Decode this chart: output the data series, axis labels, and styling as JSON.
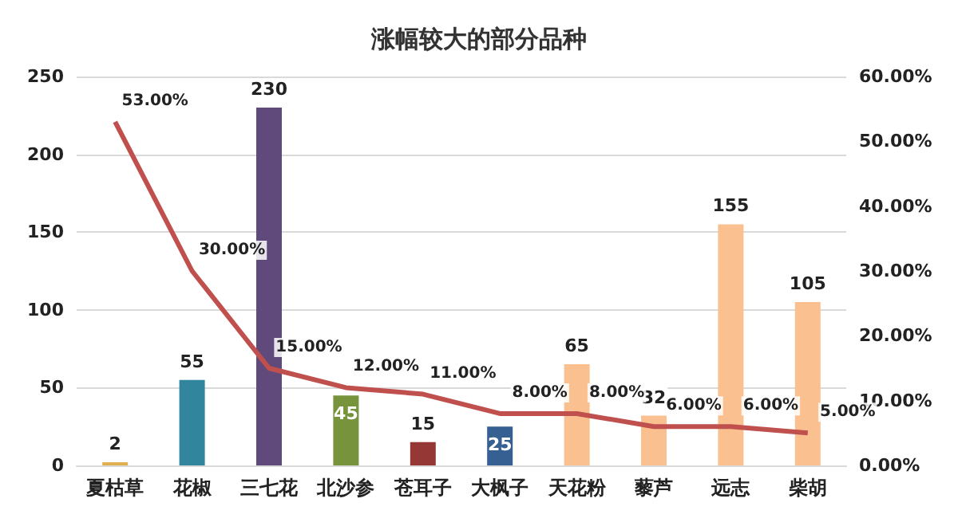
{
  "chart_data": {
    "type": "bar",
    "title": "涨幅较大的部分品种",
    "categories": [
      "夏枯草",
      "花椒",
      "三七花",
      "北沙参",
      "苍耳子",
      "大枫子",
      "天花粉",
      "藜芦",
      "远志",
      "柴胡"
    ],
    "series": [
      {
        "colors": [
          "#e0b050",
          "#31859c",
          "#604a7b",
          "#77933c",
          "#953735",
          "#376092",
          "#fac090",
          "#fac090",
          "#fac090",
          "#fac090"
        ],
        "values": [
          2,
          55,
          230,
          45,
          15,
          25,
          65,
          32,
          155,
          105
        ]
      },
      {
        "type": "line",
        "axis": "y2",
        "color": "#c0504d",
        "values": [
          53,
          30,
          15,
          12,
          11,
          8,
          8,
          6,
          6,
          5
        ],
        "value_labels": [
          "53.00%",
          "30.00%",
          "15.00%",
          "12.00%",
          "11.00%",
          "8.00%",
          "8.00%",
          "6.00%",
          "6.00%",
          "5.00%"
        ]
      }
    ],
    "data_labels": true,
    "ylim": [
      0,
      250
    ],
    "yticks": [
      0,
      50,
      100,
      150,
      200,
      250
    ],
    "y2lim": [
      0,
      60
    ],
    "y2ticks": [
      {
        "value": 0,
        "label": "0.00%"
      },
      {
        "value": 10,
        "label": "10.00%"
      },
      {
        "value": 20,
        "label": "20.00%"
      },
      {
        "value": 30,
        "label": "30.00%"
      },
      {
        "value": 40,
        "label": "40.00%"
      },
      {
        "value": 50,
        "label": "50.00%"
      },
      {
        "value": 60,
        "label": "60.00%"
      }
    ],
    "grid": "y",
    "marker": "none",
    "line_style": "solid"
  }
}
